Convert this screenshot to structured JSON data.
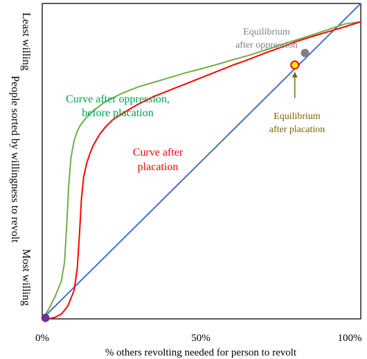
{
  "chart_data": {
    "type": "line",
    "title": "",
    "xlabel": "% others revolting needed for person to revolt",
    "ylabel": "People sorted by willingness to revolt",
    "y_top_label": "Least willing",
    "y_bottom_label": "Most willing",
    "xlim": [
      0,
      100
    ],
    "ylim": [
      0,
      100
    ],
    "x_ticks": [
      {
        "value": 0,
        "label": "0%"
      },
      {
        "value": 50,
        "label": "50%"
      },
      {
        "value": 100,
        "label": "100%"
      }
    ],
    "grid": false,
    "colors": {
      "diagonal": "#4472c4",
      "oppression": "#70ad47",
      "placation": "#ff0000",
      "equilibrium_oppression": "#808080",
      "equilibrium_placation_fill": "#ffff00",
      "equilibrium_placation_stroke": "#ff0000",
      "origin_point": "#7030a0",
      "placation_label": "#806000",
      "equilibrium_text": "#808080"
    },
    "series": [
      {
        "key": "diagonal",
        "x": [
          0,
          100
        ],
        "y": [
          0,
          100
        ]
      },
      {
        "key": "oppression",
        "x": [
          0,
          2,
          4,
          6,
          7,
          7.7,
          8.3,
          9,
          10,
          11,
          12,
          14,
          16,
          18,
          20,
          25,
          30,
          35,
          40,
          45,
          50,
          55,
          60,
          65,
          70,
          75,
          80,
          85,
          90,
          95,
          100
        ],
        "y": [
          0,
          3,
          7,
          12,
          18,
          30,
          42,
          51,
          56.5,
          59.5,
          61.5,
          64,
          66,
          67.5,
          69,
          71.5,
          73.5,
          75,
          76.5,
          78,
          79.3,
          80.7,
          82.2,
          83.6,
          85.2,
          86.9,
          88.5,
          90.1,
          91.8,
          93.5,
          94.2
        ]
      },
      {
        "key": "placation",
        "x": [
          0,
          2,
          4,
          6,
          8,
          10,
          11,
          11.7,
          12.3,
          13,
          14,
          15,
          16,
          18,
          20,
          22,
          25,
          30,
          35,
          40,
          45,
          50,
          55,
          60,
          65,
          70,
          75,
          80,
          85,
          90,
          95,
          100
        ],
        "y": [
          0,
          0,
          0.5,
          1.5,
          4,
          9,
          16,
          27,
          38,
          45,
          49.5,
          52.5,
          55,
          58.5,
          61,
          63,
          65,
          68,
          70.5,
          72.5,
          74.5,
          76.5,
          78.5,
          80.5,
          82.3,
          84.3,
          86.1,
          88,
          89.6,
          91.1,
          92.6,
          94.2
        ]
      }
    ],
    "points": [
      {
        "key": "origin",
        "x": 1,
        "y": 0.3
      },
      {
        "key": "equilibrium_oppression",
        "x": 82.5,
        "y": 84.3
      },
      {
        "key": "equilibrium_placation",
        "x": 79.3,
        "y": 80.5
      }
    ],
    "annotations": {
      "oppression_curve_line1": "Curve after oppression,",
      "oppression_curve_line2": "before placation",
      "placation_curve_line1": "Curve after",
      "placation_curve_line2": "placation",
      "eq_oppression_line1": "Equilibrium",
      "eq_oppression_line2": "after oppression",
      "eq_placation_line1": "Equilibrium",
      "eq_placation_line2": "after placation"
    }
  }
}
